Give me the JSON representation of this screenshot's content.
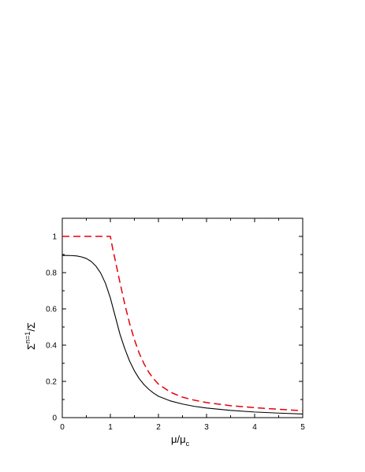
{
  "chart_data": {
    "type": "line",
    "title": "",
    "xlim": [
      0,
      5
    ],
    "ylim": [
      0,
      1.1
    ],
    "grid": false,
    "legend": "none",
    "x_ticks": [
      0,
      1,
      2,
      3,
      4,
      5
    ],
    "x_tick_labels": [
      "0",
      "1",
      "2",
      "3",
      "4",
      "5"
    ],
    "y_ticks": [
      0,
      0.2,
      0.4,
      0.6,
      0.8,
      1
    ],
    "y_tick_labels": [
      "0",
      "0.2",
      "0.4",
      "0.6",
      "0.8",
      "1"
    ],
    "xlabel": {
      "main": "μ/μ",
      "sub": "c"
    },
    "ylabel": {
      "sym1": "Σ",
      "sup": "n=1",
      "sym2": "/Σ"
    },
    "series": [
      {
        "color": "#000000",
        "style": "solid",
        "x": [
          0,
          0.1,
          0.2,
          0.3,
          0.4,
          0.5,
          0.6,
          0.7,
          0.8,
          0.9,
          1.0,
          1.1,
          1.2,
          1.3,
          1.4,
          1.5,
          1.6,
          1.7,
          1.8,
          1.9,
          2.0,
          2.25,
          2.5,
          2.75,
          3.0,
          3.5,
          4.0,
          4.5,
          5.0
        ],
        "y": [
          0.895,
          0.895,
          0.894,
          0.892,
          0.887,
          0.878,
          0.862,
          0.836,
          0.797,
          0.74,
          0.66,
          0.56,
          0.46,
          0.38,
          0.312,
          0.258,
          0.215,
          0.182,
          0.156,
          0.135,
          0.118,
          0.092,
          0.075,
          0.062,
          0.053,
          0.04,
          0.031,
          0.025,
          0.02
        ]
      },
      {
        "color": "#e8000b",
        "style": "dashed",
        "x": [
          0,
          0.5,
          1.0,
          1.05,
          1.1,
          1.2,
          1.3,
          1.4,
          1.5,
          1.6,
          1.7,
          1.8,
          1.9,
          2.0,
          2.25,
          2.5,
          2.75,
          3.0,
          3.5,
          4.0,
          4.5,
          5.0
        ],
        "y": [
          1.0,
          1.0,
          1.0,
          0.93,
          0.87,
          0.745,
          0.625,
          0.52,
          0.43,
          0.355,
          0.297,
          0.25,
          0.214,
          0.185,
          0.14,
          0.113,
          0.096,
          0.083,
          0.066,
          0.055,
          0.046,
          0.038
        ]
      }
    ]
  }
}
